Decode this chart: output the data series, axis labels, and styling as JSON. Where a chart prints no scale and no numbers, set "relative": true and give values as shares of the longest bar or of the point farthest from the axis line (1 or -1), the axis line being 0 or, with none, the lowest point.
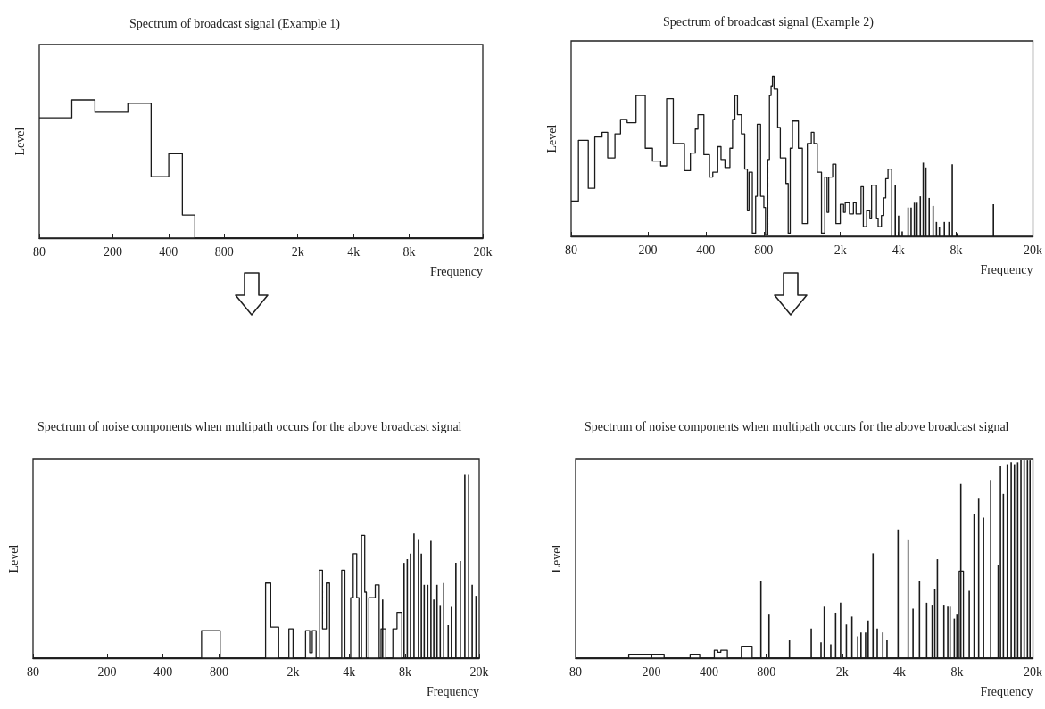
{
  "chart_data": [
    {
      "type": "step",
      "title": "Spectrum of broadcast signal (Example 1)",
      "xlabel": "Frequency",
      "ylabel": "Level",
      "relative": true,
      "log": "x",
      "xlim": [
        80,
        20000
      ],
      "xticks": [
        80,
        200,
        400,
        800,
        {
          "value": 2000,
          "label": "2k"
        },
        {
          "value": 4000,
          "label": "4k"
        },
        {
          "value": 8000,
          "label": "8k"
        },
        {
          "value": 20000,
          "label": "20k"
        }
      ],
      "series": [
        {
          "color": "#1a1a1a",
          "x": [
            80,
            120,
            160,
            241,
            322,
            401,
            475,
            555,
            20000
          ],
          "values": [
            0.87,
            1,
            0.91,
            0.975,
            0.444,
            0.611,
            0.167,
            0,
            0
          ]
        }
      ]
    },
    {
      "type": "step",
      "title": "Spectrum of broadcast signal (Example 2)",
      "xlabel": "Frequency",
      "ylabel": "Level",
      "relative": true,
      "log": "x",
      "xlim": [
        80,
        20000
      ],
      "xticks": [
        80,
        200,
        400,
        800,
        {
          "value": 2000,
          "label": "2k"
        },
        {
          "value": 4000,
          "label": "4k"
        },
        {
          "value": 8000,
          "label": "8k"
        },
        {
          "value": 20000,
          "label": "20k"
        }
      ],
      "series": [
        {
          "color": "#1a1a1a",
          "x": [
            80,
            87.3,
            98.2,
            106.2,
            115.8,
            123.9,
            135.1,
            144.4,
            156.3,
            173.8,
            194.1,
            211.6,
            233.5,
            250.6,
            271.3,
            310.1,
            333,
            353.1,
            364.4,
            391.3,
            418.4,
            435.2,
            461.6,
            480.1,
            503.4,
            534,
            551.1,
            566.6,
            584.7,
            613,
            637.6,
            658,
            671.1,
            698.1,
            726.1,
            740.6,
            770.3,
            801.3,
            817.2,
            840,
            856.8,
            873.7,
            887.8,
            905.3,
            945.3,
            975.5,
            1043,
            1072,
            1098,
            1128,
            1211,
            1270,
            1347,
            1413,
            1458,
            1517,
            1596,
            1660,
            1706,
            1740,
            1824,
            1897,
            1998,
            2078,
            2120,
            2230,
            2338,
            2413,
            2561,
            2632,
            2738,
            2847,
            2904,
            3080,
            3142,
            3268,
            3359,
            3440,
            3536,
            3693
          ],
          "values": [
            0.22,
            0.6,
            0.3,
            0.62,
            0.65,
            0.49,
            0.64,
            0.73,
            0.71,
            0.88,
            0.55,
            0.47,
            0.44,
            0.86,
            0.58,
            0.41,
            0.52,
            0.67,
            0.76,
            0.51,
            0.37,
            0.4,
            0.56,
            0.48,
            0.43,
            0.55,
            0.73,
            0.88,
            0.76,
            0.64,
            0.42,
            0.16,
            0.4,
            0.02,
            0.25,
            0.7,
            0.25,
            0.18,
            0.01,
            0.48,
            0.88,
            0.94,
            1,
            0.92,
            0.68,
            0.49,
            0.33,
            0.02,
            0.55,
            0.72,
            0.55,
            0.08,
            0.58,
            0.65,
            0.58,
            0.4,
            0.02,
            0.37,
            0.15,
            0.37,
            0.45,
            0.08,
            0.2,
            0.15,
            0.21,
            0.14,
            0.21,
            0.14,
            0.31,
            0.06,
            0.16,
            0.11,
            0.32,
            0.11,
            0.06,
            0.13,
            0.24,
            0.36,
            0.42,
            0
          ]
        },
        {
          "type": "bar",
          "color": "#1a1a1a",
          "x": [
            3856,
            4011,
            4189,
            4496,
            4659,
            4846,
            5000,
            5201,
            5388,
            5561,
            5784,
            6065,
            6308,
            6536,
            6934,
            7326,
            7621,
            8087,
            12466
          ],
          "values": [
            0.32,
            0.13,
            0.03,
            0.18,
            0.18,
            0.21,
            0.21,
            0.25,
            0.46,
            0.43,
            0.24,
            0.19,
            0.09,
            0.06,
            0.09,
            0.09,
            0.45,
            0.02,
            0.2
          ]
        }
      ]
    },
    {
      "type": "step",
      "title": "Spectrum of noise components when multipath occurs for the above broadcast signal",
      "xlabel": "Frequency",
      "ylabel": "Level",
      "relative": true,
      "log": "x",
      "xlim": [
        80,
        20000
      ],
      "xticks": [
        80,
        200,
        400,
        800,
        {
          "value": 2000,
          "label": "2k"
        },
        {
          "value": 4000,
          "label": "4k"
        },
        {
          "value": 8000,
          "label": "8k"
        },
        {
          "value": 20000,
          "label": "20k"
        }
      ],
      "series": [
        {
          "color": "#1a1a1a",
          "x": [
            80,
            644,
            811,
            1422,
            1515,
            1672,
            1897,
            1998,
            2332,
            2455,
            2534,
            2657,
            2764,
            2876,
            3016,
            3138,
            3647,
            3794,
            4076,
            4206,
            4393,
            4517,
            4662,
            4850,
            4947,
            5106,
            5525,
            5796,
            5935,
            6298,
            6871,
            7232,
            7675,
            20000
          ],
          "values": [
            0,
            0.15,
            0,
            0.41,
            0.17,
            0,
            0.16,
            0,
            0.15,
            0.03,
            0.15,
            0,
            0.48,
            0.16,
            0.41,
            0,
            0.48,
            0,
            0.33,
            0.57,
            0.33,
            0,
            0.67,
            0.36,
            0,
            0.33,
            0.4,
            0,
            0.16,
            0,
            0.16,
            0.25,
            0,
            0
          ]
        },
        {
          "type": "bar",
          "color": "#1a1a1a",
          "x": [
            6053,
            7890,
            8212,
            8544,
            8923,
            9430,
            9772,
            10125,
            10575,
            11002,
            11403,
            11864,
            12343,
            12891,
            13628,
            14178,
            14982,
            15836,
            16739,
            17551,
            18331,
            19222
          ],
          "values": [
            0.32,
            0.52,
            0.54,
            0.57,
            0.68,
            0.65,
            0.57,
            0.4,
            0.4,
            0.64,
            0.32,
            0.4,
            0.29,
            0.41,
            0.18,
            0.28,
            0.52,
            0.53,
            1,
            1,
            0.4,
            0.34
          ]
        }
      ]
    },
    {
      "type": "step",
      "title": "Spectrum of noise components when multipath occurs for the above broadcast signal",
      "xlabel": "Frequency",
      "ylabel": "Level",
      "relative": true,
      "log": "x",
      "xlim": [
        80,
        20000
      ],
      "xticks": [
        80,
        200,
        400,
        800,
        {
          "value": 2000,
          "label": "2k"
        },
        {
          "value": 4000,
          "label": "4k"
        },
        {
          "value": 8000,
          "label": "8k"
        },
        {
          "value": 20000,
          "label": "20k"
        }
      ],
      "series": [
        {
          "color": "#1a1a1a",
          "x": [
            80,
            152,
            233,
            319,
            358,
            427,
            445,
            462,
            500,
            592,
            674,
            8210,
            8639,
            20000
          ],
          "values": [
            0,
            0.02,
            0,
            0.02,
            0,
            0.04,
            0.03,
            0.04,
            0,
            0.06,
            0,
            0.44,
            0,
            0
          ]
        },
        {
          "type": "bar",
          "color": "#1a1a1a",
          "x": [
            749.4,
            826.6,
            1058,
            1376,
            1548,
            1610,
            1742,
            1847,
            1960,
            2103,
            2248,
            2412,
            2509,
            2651,
            2735,
            2900,
            3052,
            3264,
            3434,
            3925,
            4434,
            4702,
            5083,
            5542,
            5925,
            6115,
            6310,
            6825,
            7154,
            7355,
            7739,
            7986,
            8372,
            9268,
            9830,
            10385,
            11015,
            12007,
            13148,
            13513,
            13996,
            14667,
            15377,
            15993,
            16632,
            17298,
            17989,
            18713,
            19303
          ],
          "values": [
            0.39,
            0.22,
            0.09,
            0.15,
            0.08,
            0.26,
            0.07,
            0.23,
            0.28,
            0.17,
            0.21,
            0.11,
            0.13,
            0.13,
            0.19,
            0.53,
            0.15,
            0.13,
            0.09,
            0.65,
            0.6,
            0.25,
            0.39,
            0.28,
            0.27,
            0.35,
            0.5,
            0.27,
            0.26,
            0.26,
            0.2,
            0.22,
            0.88,
            0.34,
            0.73,
            0.81,
            0.71,
            0.9,
            0.47,
            0.97,
            0.83,
            0.98,
            0.99,
            0.98,
            0.99,
            1,
            1,
            1,
            1
          ]
        }
      ]
    }
  ]
}
